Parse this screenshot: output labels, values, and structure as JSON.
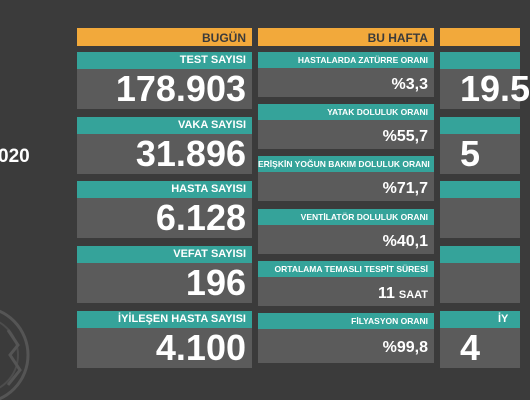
{
  "left_date_fragment": "020",
  "today": {
    "header": "BUGÜN",
    "items": [
      {
        "label": "TEST SAYISI",
        "value": "178.903"
      },
      {
        "label": "VAKA SAYISI",
        "value": "31.896"
      },
      {
        "label": "HASTA SAYISI",
        "value": "6.128"
      },
      {
        "label": "VEFAT SAYISI",
        "value": "196"
      },
      {
        "label": "İYİLEŞEN HASTA SAYISI",
        "value": "4.100"
      }
    ]
  },
  "week": {
    "header": "BU HAFTA",
    "items": [
      {
        "label": "HASTALARDA ZATÜRRE ORANI",
        "value": "%3,3"
      },
      {
        "label": "YATAK DOLULUK ORANI",
        "value": "%55,7"
      },
      {
        "label": "ERİŞKİN YOĞUN BAKIM DOLULUK ORANI",
        "value": "%71,7"
      },
      {
        "label": "VENTİLATÖR DOLULUK ORANI",
        "value": "%40,1"
      },
      {
        "label": "ORTALAMA TEMASLI TESPİT SÜRESİ",
        "value": "11",
        "unit": "SAAT"
      },
      {
        "label": "FİLYASYON ORANI",
        "value": "%99,8"
      }
    ]
  },
  "third_column": {
    "values": [
      "19.5",
      "5",
      null,
      null,
      "4"
    ],
    "labels": [
      null,
      null,
      null,
      null,
      "İY"
    ]
  }
}
